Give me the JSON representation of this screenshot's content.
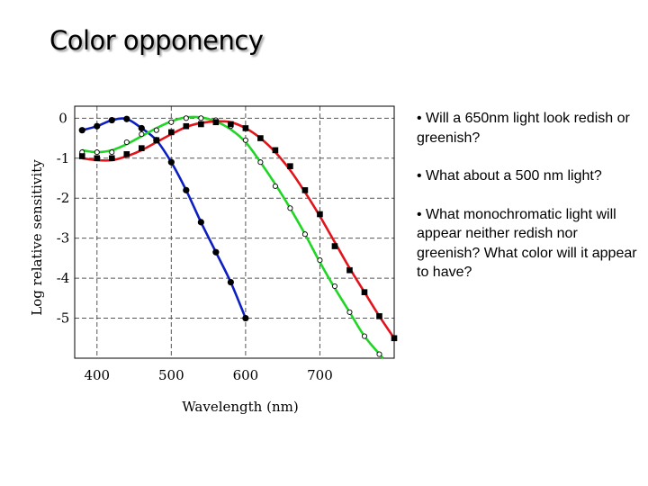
{
  "slide": {
    "title": "Color opponency",
    "bullets": [
      "• Will a 650nm light look redish or greenish?",
      "• What about a 500 nm light?",
      "• What monochromatic light will appear neither redish nor greenish? What color will it appear to have?"
    ]
  },
  "chart_data": {
    "type": "line",
    "title": "",
    "xlabel": "Wavelength (nm)",
    "ylabel": "Log relative sensitivity",
    "xlim": [
      370,
      800
    ],
    "ylim": [
      -6,
      0.3
    ],
    "x_ticks": [
      400,
      500,
      600,
      700
    ],
    "y_ticks": [
      0,
      -1,
      -2,
      -3,
      -4,
      -5
    ],
    "y_tick_labels": [
      "0",
      "-1",
      "-2",
      "-3",
      "-4",
      "-5"
    ],
    "grid": true,
    "series": [
      {
        "color": "#0b1fc4",
        "marker": "filled-circle",
        "x": [
          380,
          400,
          420,
          440,
          460,
          480,
          500,
          520,
          540,
          560,
          580,
          600
        ],
        "y": [
          -0.3,
          -0.2,
          -0.05,
          -0.02,
          -0.25,
          -0.55,
          -1.1,
          -1.8,
          -2.6,
          -3.35,
          -4.1,
          -5.0
        ]
      },
      {
        "color": "#1fd624",
        "marker": "open-circle",
        "x": [
          380,
          400,
          420,
          440,
          460,
          480,
          500,
          520,
          540,
          560,
          580,
          600,
          620,
          640,
          660,
          680,
          700,
          720,
          740,
          760,
          780
        ],
        "y": [
          -0.85,
          -0.85,
          -0.85,
          -0.6,
          -0.4,
          -0.3,
          -0.1,
          0.0,
          0.0,
          -0.05,
          -0.2,
          -0.55,
          -1.1,
          -1.7,
          -2.25,
          -2.9,
          -3.55,
          -4.2,
          -4.85,
          -5.45,
          -5.9
        ],
        "curve_x": [
          380,
          400,
          420,
          440,
          460,
          480,
          500,
          520,
          540,
          560,
          580,
          600,
          620,
          640,
          660,
          680,
          700,
          720,
          740,
          760,
          785
        ],
        "curve_y": [
          -0.8,
          -0.85,
          -0.8,
          -0.65,
          -0.45,
          -0.25,
          -0.08,
          0.02,
          0.02,
          -0.08,
          -0.28,
          -0.6,
          -1.1,
          -1.65,
          -2.25,
          -2.9,
          -3.6,
          -4.25,
          -4.85,
          -5.45,
          -6.0
        ]
      },
      {
        "color": "#e0141a",
        "marker": "filled-square",
        "x": [
          380,
          400,
          420,
          440,
          460,
          480,
          500,
          520,
          540,
          560,
          580,
          600,
          620,
          640,
          660,
          680,
          700,
          720,
          740,
          760,
          780,
          800
        ],
        "y": [
          -0.95,
          -1.0,
          -1.0,
          -0.9,
          -0.75,
          -0.55,
          -0.35,
          -0.2,
          -0.15,
          -0.1,
          -0.15,
          -0.25,
          -0.5,
          -0.8,
          -1.2,
          -1.8,
          -2.4,
          -3.2,
          -3.8,
          -4.35,
          -4.95,
          -5.5
        ],
        "curve_x": [
          380,
          400,
          420,
          440,
          460,
          480,
          500,
          520,
          540,
          560,
          580,
          600,
          620,
          640,
          660,
          680,
          700,
          720,
          740,
          760,
          780,
          800
        ],
        "curve_y": [
          -1.0,
          -1.05,
          -1.05,
          -0.95,
          -0.8,
          -0.6,
          -0.4,
          -0.22,
          -0.12,
          -0.08,
          -0.1,
          -0.25,
          -0.5,
          -0.85,
          -1.3,
          -1.85,
          -2.45,
          -3.1,
          -3.75,
          -4.35,
          -4.95,
          -5.5
        ]
      }
    ]
  }
}
